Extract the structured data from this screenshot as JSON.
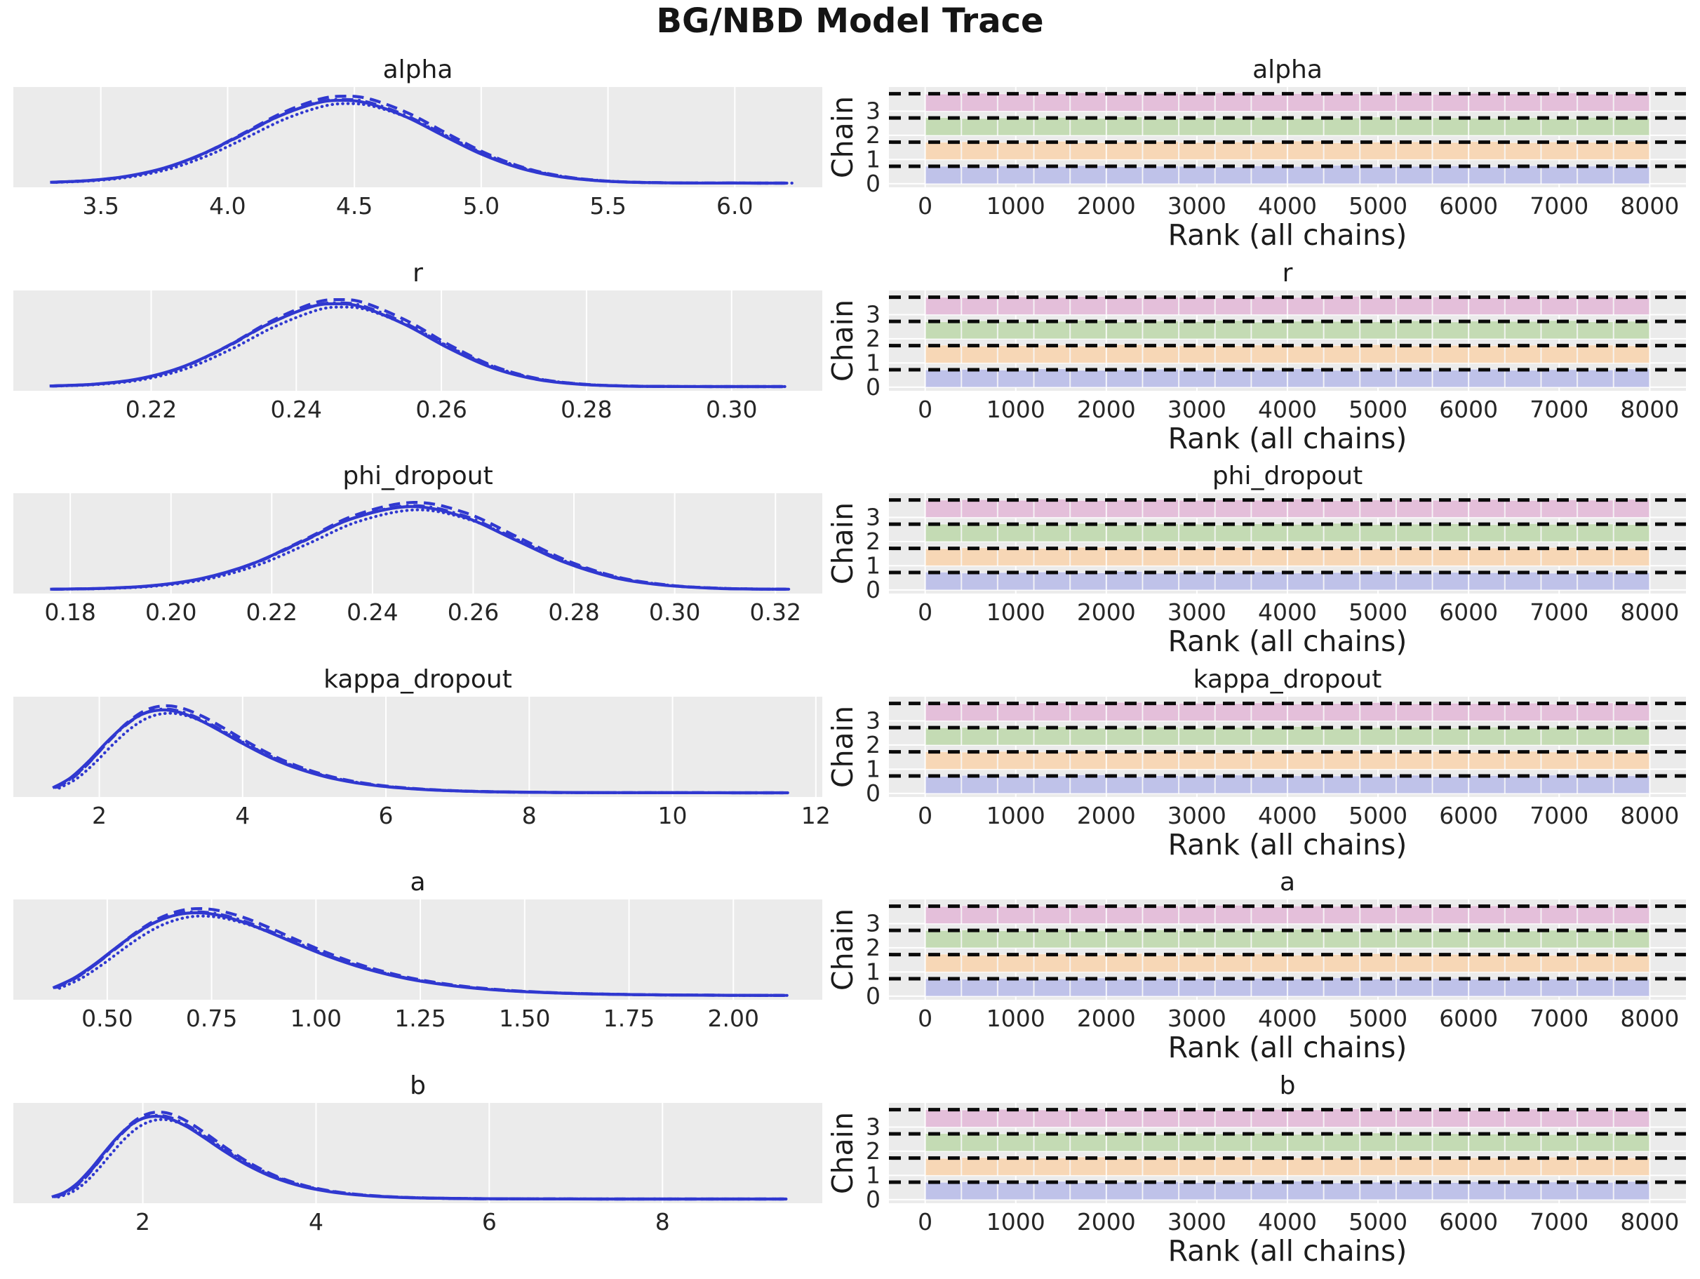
{
  "figure_title": "BG/NBD Model Trace",
  "colors": {
    "axes_background": "#ebebeb",
    "gridline": "#ffffff",
    "kde_line": "#3038d0",
    "reference_dash": "#0a0a0a",
    "text": "#262626",
    "chain_bar_colors": [
      "#bfc2e9",
      "#f7d7b6",
      "#c4dbb4",
      "#e4bfda"
    ]
  },
  "chain_line_styles": [
    {
      "chain": 0,
      "style": "solid",
      "scale": 1.0,
      "shift": 0.0
    },
    {
      "chain": 1,
      "style": "dashed",
      "scale": 1.05,
      "shift": 0.004
    },
    {
      "chain": 2,
      "style": "dashdot",
      "scale": 1.01,
      "shift": 0.002
    },
    {
      "chain": 3,
      "style": "dotted",
      "scale": 0.96,
      "shift": 0.008
    }
  ],
  "rank_axis": {
    "xlabel": "Rank (all chains)",
    "ylabel": "Chain",
    "xlim": [
      -400,
      8400
    ],
    "xtick_values": [
      0,
      1000,
      2000,
      3000,
      4000,
      5000,
      6000,
      7000,
      8000
    ],
    "xtick_labels": [
      "0",
      "1000",
      "2000",
      "3000",
      "4000",
      "5000",
      "6000",
      "7000",
      "8000"
    ],
    "ytick_values": [
      0,
      1,
      2,
      3
    ],
    "ytick_labels": [
      "0",
      "1",
      "2",
      "3"
    ],
    "ylim": [
      -0.15,
      4.0
    ],
    "bar_span": [
      0,
      8000
    ],
    "bar_count": 20,
    "uniform_reference_level": 0.72
  },
  "bar_patterns": {
    "A": [
      1.0,
      0.98,
      1.02,
      0.99,
      1.04,
      0.97,
      1.01,
      1.0,
      0.96,
      1.02,
      0.99,
      1.05,
      0.98,
      1.0,
      1.02,
      0.97,
      1.03,
      0.99,
      1.01,
      0.98
    ],
    "B": [
      0.99,
      1.02,
      0.98,
      1.05,
      0.97,
      1.0,
      1.03,
      0.98,
      1.01,
      0.99,
      1.06,
      0.96,
      1.0,
      1.02,
      0.98,
      1.03,
      0.97,
      1.01,
      0.99,
      1.04
    ],
    "C": [
      1.02,
      0.97,
      1.0,
      1.03,
      0.98,
      1.06,
      0.96,
      1.01,
      1.0,
      1.03,
      0.97,
      1.0,
      1.05,
      0.98,
      1.01,
      0.99,
      1.02,
      0.96,
      1.03,
      0.99
    ],
    "D": [
      0.98,
      1.03,
      0.99,
      1.0,
      1.06,
      0.97,
      1.02,
      0.99,
      1.05,
      0.96,
      1.01,
      1.0,
      0.98,
      1.04,
      0.97,
      1.02,
      1.0,
      1.05,
      0.98,
      1.01
    ]
  },
  "chart_data": [
    {
      "name": "alpha",
      "type": "kde+rank-bars",
      "kde": {
        "xlim": [
          3.155,
          6.345
        ],
        "xtick_values": [
          3.5,
          4.0,
          4.5,
          5.0,
          5.5,
          6.0
        ],
        "xtick_labels": [
          "3.5",
          "4.0",
          "4.5",
          "5.0",
          "5.5",
          "6.0"
        ],
        "x": [
          3.3,
          3.45,
          3.6,
          3.75,
          3.9,
          4.05,
          4.2,
          4.35,
          4.45,
          4.55,
          4.7,
          4.85,
          5.0,
          5.15,
          5.3,
          5.45,
          5.6,
          5.8,
          6.0,
          6.2
        ],
        "density": [
          0.01,
          0.031,
          0.082,
          0.183,
          0.351,
          0.575,
          0.805,
          0.966,
          1.0,
          0.966,
          0.805,
          0.575,
          0.351,
          0.183,
          0.082,
          0.031,
          0.01,
          0.002,
          0.0005,
          0.0002
        ]
      },
      "rank_chain_patterns": [
        "A",
        "B",
        "C",
        "D"
      ]
    },
    {
      "name": "r",
      "type": "kde+rank-bars",
      "kde": {
        "xlim": [
          0.201,
          0.3125
        ],
        "xtick_values": [
          0.22,
          0.24,
          0.26,
          0.28,
          0.3
        ],
        "xtick_labels": [
          "0.22",
          "0.24",
          "0.26",
          "0.28",
          "0.30"
        ],
        "x": [
          0.206,
          0.212,
          0.218,
          0.224,
          0.23,
          0.236,
          0.242,
          0.2455,
          0.249,
          0.255,
          0.261,
          0.267,
          0.273,
          0.279,
          0.285,
          0.291,
          0.297,
          0.302,
          0.307
        ],
        "density": [
          0.007,
          0.028,
          0.089,
          0.228,
          0.464,
          0.749,
          0.962,
          1.0,
          0.962,
          0.749,
          0.464,
          0.228,
          0.089,
          0.028,
          0.007,
          0.0013,
          0.0004,
          0.0002,
          0.0001
        ]
      },
      "rank_chain_patterns": [
        "B",
        "C",
        "D",
        "A"
      ]
    },
    {
      "name": "phi_dropout",
      "type": "kde+rank-bars",
      "kde": {
        "xlim": [
          0.1687,
          0.3293
        ],
        "xtick_values": [
          0.18,
          0.2,
          0.22,
          0.24,
          0.26,
          0.28,
          0.3,
          0.32
        ],
        "xtick_labels": [
          "0.18",
          "0.20",
          "0.22",
          "0.24",
          "0.26",
          "0.28",
          "0.30",
          "0.32"
        ],
        "x": [
          0.176,
          0.186,
          0.196,
          0.206,
          0.216,
          0.226,
          0.236,
          0.2475,
          0.258,
          0.268,
          0.278,
          0.288,
          0.298,
          0.308,
          0.315,
          0.322
        ],
        "density": [
          0.002,
          0.011,
          0.043,
          0.13,
          0.306,
          0.576,
          0.855,
          1.0,
          0.877,
          0.607,
          0.33,
          0.141,
          0.049,
          0.013,
          0.004,
          0.0015
        ]
      },
      "rank_chain_patterns": [
        "C",
        "D",
        "A",
        "B"
      ]
    },
    {
      "name": "kappa_dropout",
      "type": "kde+rank-bars",
      "kde": {
        "xlim": [
          0.8,
          12.09
        ],
        "xtick_values": [
          2,
          4,
          6,
          8,
          10,
          12
        ],
        "xtick_labels": [
          "2",
          "4",
          "6",
          "8",
          "10",
          "12"
        ],
        "x": [
          1.35,
          1.6,
          1.85,
          2.1,
          2.35,
          2.6,
          2.85,
          3.1,
          3.4,
          3.7,
          4.0,
          4.4,
          4.8,
          5.3,
          5.9,
          6.6,
          7.4,
          8.3,
          9.3,
          10.4,
          11.55
        ],
        "density": [
          0.059,
          0.182,
          0.379,
          0.609,
          0.811,
          0.949,
          1.0,
          0.976,
          0.878,
          0.741,
          0.596,
          0.42,
          0.284,
          0.165,
          0.083,
          0.036,
          0.013,
          0.004,
          0.0013,
          0.0005,
          0.0002
        ]
      },
      "rank_chain_patterns": [
        "D",
        "A",
        "B",
        "C"
      ]
    },
    {
      "name": "a",
      "type": "kde+rank-bars",
      "kde": {
        "xlim": [
          0.275,
          2.213
        ],
        "xtick_values": [
          0.5,
          0.75,
          1.0,
          1.25,
          1.5,
          1.75,
          2.0
        ],
        "xtick_labels": [
          "0.50",
          "0.75",
          "1.00",
          "1.25",
          "1.50",
          "1.75",
          "2.00"
        ],
        "x": [
          0.37,
          0.42,
          0.47,
          0.52,
          0.57,
          0.62,
          0.67,
          0.713,
          0.76,
          0.82,
          0.88,
          0.95,
          1.03,
          1.12,
          1.22,
          1.33,
          1.45,
          1.6,
          1.78,
          1.95,
          2.12
        ],
        "density": [
          0.092,
          0.21,
          0.38,
          0.574,
          0.756,
          0.897,
          0.979,
          1.0,
          0.977,
          0.897,
          0.782,
          0.633,
          0.472,
          0.323,
          0.202,
          0.116,
          0.061,
          0.027,
          0.01,
          0.004,
          0.0015
        ]
      },
      "rank_chain_patterns": [
        "A",
        "C",
        "B",
        "D"
      ]
    },
    {
      "name": "b",
      "type": "kde+rank-bars",
      "kde": {
        "xlim": [
          0.505,
          9.845
        ],
        "xtick_values": [
          2,
          4,
          6,
          8
        ],
        "xtick_labels": [
          "2",
          "4",
          "6",
          "8"
        ],
        "x": [
          0.95,
          1.1,
          1.25,
          1.4,
          1.55,
          1.7,
          1.85,
          2.0,
          2.147,
          2.3,
          2.5,
          2.7,
          2.95,
          3.2,
          3.5,
          3.85,
          4.25,
          4.7,
          5.2,
          5.8,
          6.5,
          7.3,
          8.3,
          9.4
        ],
        "density": [
          0.025,
          0.083,
          0.197,
          0.363,
          0.555,
          0.739,
          0.885,
          0.973,
          1.0,
          0.974,
          0.879,
          0.747,
          0.571,
          0.413,
          0.265,
          0.15,
          0.075,
          0.033,
          0.013,
          0.004,
          0.0013,
          0.0004,
          0.0001,
          5e-05
        ]
      },
      "rank_chain_patterns": [
        "B",
        "D",
        "C",
        "A"
      ]
    }
  ]
}
